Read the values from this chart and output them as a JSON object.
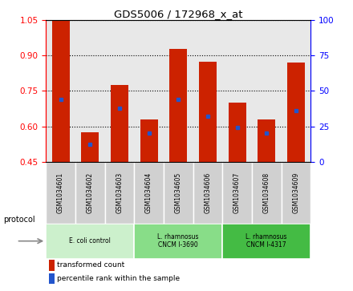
{
  "title": "GDS5006 / 172968_x_at",
  "samples": [
    "GSM1034601",
    "GSM1034602",
    "GSM1034603",
    "GSM1034604",
    "GSM1034605",
    "GSM1034606",
    "GSM1034607",
    "GSM1034608",
    "GSM1034609"
  ],
  "transformed_count": [
    1.048,
    0.573,
    0.775,
    0.63,
    0.928,
    0.875,
    0.7,
    0.63,
    0.87
  ],
  "percentile_rank": [
    44,
    12,
    38,
    20,
    44,
    32,
    24,
    20,
    36
  ],
  "ylim_left": [
    0.45,
    1.05
  ],
  "ylim_right": [
    0,
    100
  ],
  "yticks_left": [
    0.45,
    0.6,
    0.75,
    0.9,
    1.05
  ],
  "yticks_right": [
    0,
    25,
    50,
    75,
    100
  ],
  "bar_color": "#cc2200",
  "dot_color": "#2255cc",
  "plot_bg_color": "#e8e8e8",
  "sample_label_bg": "#d0d0d0",
  "protocol_groups": [
    {
      "label": "E. coli control",
      "indices": [
        0,
        1,
        2
      ],
      "color": "#ccf0cc"
    },
    {
      "label": "L. rhamnosus\nCNCM I-3690",
      "indices": [
        3,
        4,
        5
      ],
      "color": "#88dd88"
    },
    {
      "label": "L. rhamnosus\nCNCM I-4317",
      "indices": [
        6,
        7,
        8
      ],
      "color": "#44bb44"
    }
  ],
  "legend_items": [
    {
      "label": "transformed count",
      "color": "#cc2200"
    },
    {
      "label": "percentile rank within the sample",
      "color": "#2255cc"
    }
  ]
}
